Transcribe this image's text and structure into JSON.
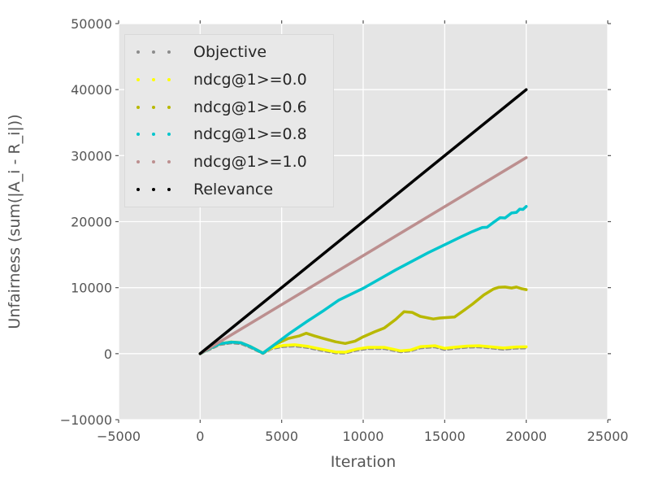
{
  "chart_data": {
    "type": "line",
    "title": "",
    "xlabel": "Iteration",
    "ylabel": "Unfairness (sum(|A_i - R_i|))",
    "xlim": [
      -5000,
      25000
    ],
    "ylim": [
      -10000,
      50000
    ],
    "xticks": [
      -5000,
      0,
      5000,
      10000,
      15000,
      20000,
      25000
    ],
    "yticks": [
      -10000,
      0,
      10000,
      20000,
      30000,
      40000,
      50000
    ],
    "xtick_labels": [
      "−5000",
      "0",
      "5000",
      "10000",
      "15000",
      "20000",
      "25000"
    ],
    "ytick_labels": [
      "−10000",
      "0",
      "10000",
      "20000",
      "30000",
      "40000",
      "50000"
    ],
    "grid": true,
    "grid_color": "#ffffff",
    "plot_background": "#e5e5e5",
    "tick_color": "#555555",
    "legend_position": "upper left",
    "series": [
      {
        "name": "Objective",
        "color": "#8c8c8c",
        "linestyle": "dotted",
        "points": [
          [
            0,
            0
          ],
          [
            600,
            650
          ],
          [
            1200,
            1350
          ],
          [
            1900,
            1600
          ],
          [
            2500,
            1500
          ],
          [
            3100,
            900
          ],
          [
            3850,
            0
          ],
          [
            4400,
            750
          ],
          [
            5100,
            1050
          ],
          [
            5800,
            1150
          ],
          [
            6600,
            900
          ],
          [
            7400,
            500
          ],
          [
            8300,
            100
          ],
          [
            8900,
            60
          ],
          [
            9600,
            500
          ],
          [
            10300,
            750
          ],
          [
            11300,
            750
          ],
          [
            12300,
            250
          ],
          [
            12900,
            400
          ],
          [
            13500,
            850
          ],
          [
            14400,
            1000
          ],
          [
            15000,
            600
          ],
          [
            15700,
            800
          ],
          [
            16400,
            950
          ],
          [
            17100,
            1000
          ],
          [
            18000,
            800
          ],
          [
            18600,
            650
          ],
          [
            19300,
            800
          ],
          [
            20000,
            850
          ]
        ]
      },
      {
        "name": "ndcg@1>=0.0",
        "color": "#ffff00",
        "linestyle": "dotted",
        "points": [
          [
            0,
            0
          ],
          [
            600,
            800
          ],
          [
            1200,
            1500
          ],
          [
            1900,
            1780
          ],
          [
            2500,
            1650
          ],
          [
            3100,
            1050
          ],
          [
            3850,
            120
          ],
          [
            4400,
            900
          ],
          [
            5100,
            1250
          ],
          [
            5800,
            1350
          ],
          [
            6600,
            1100
          ],
          [
            7400,
            700
          ],
          [
            8300,
            260
          ],
          [
            8900,
            220
          ],
          [
            9600,
            700
          ],
          [
            10300,
            950
          ],
          [
            11300,
            950
          ],
          [
            12300,
            420
          ],
          [
            12900,
            550
          ],
          [
            13500,
            1050
          ],
          [
            14400,
            1200
          ],
          [
            15000,
            800
          ],
          [
            15700,
            1000
          ],
          [
            16400,
            1150
          ],
          [
            17100,
            1200
          ],
          [
            18000,
            1000
          ],
          [
            18600,
            860
          ],
          [
            19300,
            1000
          ],
          [
            20000,
            1040
          ]
        ]
      },
      {
        "name": "ndcg@1>=0.6",
        "color": "#b8b800",
        "linestyle": "dotted",
        "points": [
          [
            0,
            0
          ],
          [
            600,
            800
          ],
          [
            1200,
            1500
          ],
          [
            1900,
            1750
          ],
          [
            2500,
            1650
          ],
          [
            3100,
            1050
          ],
          [
            3850,
            60
          ],
          [
            4600,
            1400
          ],
          [
            5400,
            2300
          ],
          [
            6100,
            2700
          ],
          [
            6500,
            3100
          ],
          [
            7000,
            2700
          ],
          [
            7500,
            2340
          ],
          [
            8300,
            1800
          ],
          [
            8900,
            1550
          ],
          [
            9500,
            1900
          ],
          [
            10000,
            2550
          ],
          [
            10700,
            3300
          ],
          [
            11300,
            3900
          ],
          [
            12000,
            5200
          ],
          [
            12500,
            6350
          ],
          [
            13000,
            6250
          ],
          [
            13500,
            5650
          ],
          [
            14300,
            5250
          ],
          [
            14700,
            5400
          ],
          [
            15600,
            5550
          ],
          [
            16200,
            6600
          ],
          [
            16700,
            7500
          ],
          [
            17400,
            8900
          ],
          [
            18000,
            9800
          ],
          [
            18300,
            10050
          ],
          [
            18700,
            10100
          ],
          [
            19100,
            9950
          ],
          [
            19400,
            10100
          ],
          [
            19700,
            9850
          ],
          [
            20000,
            9700
          ]
        ]
      },
      {
        "name": "ndcg@1>=0.8",
        "color": "#00c5cd",
        "linestyle": "dotted",
        "points": [
          [
            0,
            0
          ],
          [
            600,
            800
          ],
          [
            1200,
            1500
          ],
          [
            1900,
            1750
          ],
          [
            2500,
            1650
          ],
          [
            3100,
            1050
          ],
          [
            3850,
            80
          ],
          [
            4600,
            1450
          ],
          [
            5500,
            3100
          ],
          [
            6500,
            4800
          ],
          [
            7500,
            6400
          ],
          [
            8500,
            8100
          ],
          [
            9500,
            9300
          ],
          [
            10000,
            9900
          ],
          [
            11000,
            11300
          ],
          [
            12000,
            12700
          ],
          [
            13000,
            14000
          ],
          [
            14000,
            15300
          ],
          [
            15000,
            16500
          ],
          [
            16000,
            17700
          ],
          [
            16700,
            18500
          ],
          [
            17300,
            19100
          ],
          [
            17600,
            19150
          ],
          [
            18000,
            19900
          ],
          [
            18400,
            20600
          ],
          [
            18700,
            20550
          ],
          [
            19100,
            21300
          ],
          [
            19400,
            21400
          ],
          [
            19600,
            21900
          ],
          [
            19800,
            21850
          ],
          [
            20000,
            22300
          ]
        ]
      },
      {
        "name": "ndcg@1>=1.0",
        "color": "#bc8f8f",
        "linestyle": "dotted",
        "points": [
          [
            0,
            0
          ],
          [
            20000,
            29700
          ]
        ]
      },
      {
        "name": "Relevance",
        "color": "#000000",
        "linestyle": "dotted",
        "points": [
          [
            0,
            0
          ],
          [
            20000,
            40000
          ]
        ]
      }
    ]
  }
}
